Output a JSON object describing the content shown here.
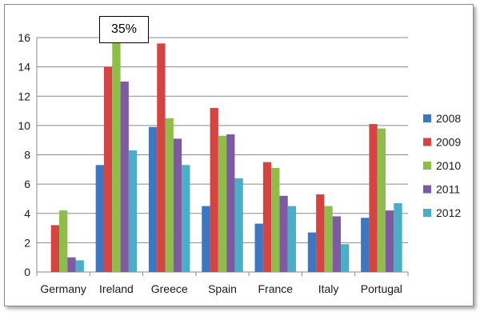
{
  "chart_data": {
    "type": "bar",
    "title": "",
    "xlabel": "",
    "ylabel": "",
    "ylim": [
      0,
      16
    ],
    "yticks": [
      0,
      2,
      4,
      6,
      8,
      10,
      12,
      14,
      16
    ],
    "grid": "horizontal",
    "legend_position": "right",
    "categories": [
      "Germany",
      "Ireland",
      "Greece",
      "Spain",
      "France",
      "Italy",
      "Portugal"
    ],
    "series": [
      {
        "name": "2008",
        "color": "#3f76c0",
        "values": [
          0.0,
          7.3,
          9.9,
          4.5,
          3.3,
          2.7,
          3.7
        ]
      },
      {
        "name": "2009",
        "color": "#d44442",
        "values": [
          3.2,
          14.0,
          15.6,
          11.2,
          7.5,
          5.3,
          10.1
        ]
      },
      {
        "name": "2010",
        "color": "#8fbc4a",
        "values": [
          4.2,
          15.8,
          10.5,
          9.3,
          7.1,
          4.5,
          9.8
        ]
      },
      {
        "name": "2011",
        "color": "#7e5aa3",
        "values": [
          1.0,
          13.0,
          9.1,
          9.4,
          5.2,
          3.8,
          4.2
        ]
      },
      {
        "name": "2012",
        "color": "#4badc6",
        "values": [
          0.8,
          8.3,
          7.3,
          6.4,
          4.5,
          1.9,
          4.7
        ]
      }
    ],
    "annotations": [
      {
        "text": "35%",
        "category": "Ireland",
        "series": "2010"
      }
    ]
  }
}
